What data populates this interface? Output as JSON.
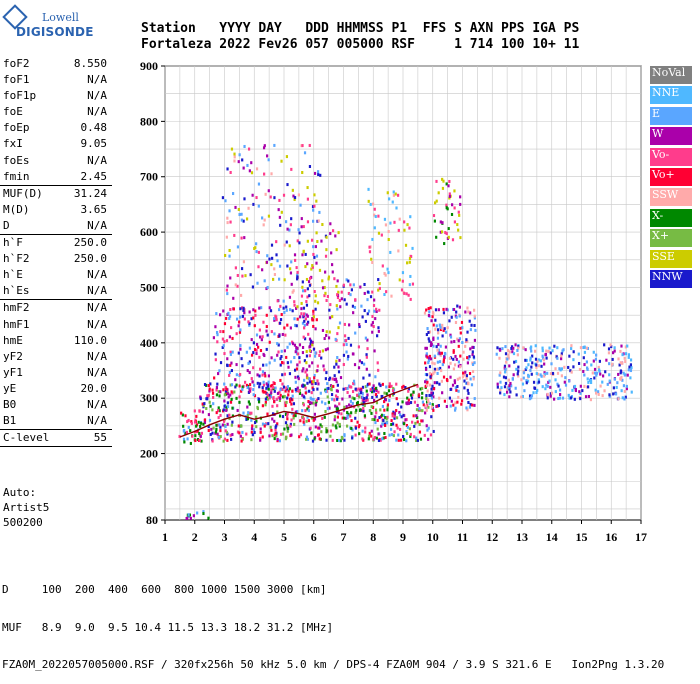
{
  "logo": {
    "line1": "Lowell",
    "line2": "DIGISONDE"
  },
  "header": {
    "line1": "Station   YYYY DAY   DDD HHMMSS P1  FFS S AXN PPS IGA PS",
    "line2": "Fortaleza 2022 Fev26 057 005000 RSF     1 714 100 10+ 11"
  },
  "params": [
    {
      "groups": [
        {
          "label": "foF2",
          "value": "8.550"
        },
        {
          "label": "foF1",
          "value": "N/A"
        },
        {
          "label": "foF1p",
          "value": "N/A"
        },
        {
          "label": "foE",
          "value": "N/A"
        },
        {
          "label": "foEp",
          "value": "0.48"
        },
        {
          "label": "fxI",
          "value": "9.05"
        },
        {
          "label": "foEs",
          "value": "N/A"
        },
        {
          "label": "fmin",
          "value": "2.45"
        }
      ]
    },
    {
      "groups": [
        {
          "label": "MUF(D)",
          "value": "31.24"
        },
        {
          "label": "M(D)",
          "value": "3.65"
        },
        {
          "label": "D",
          "value": "N/A"
        }
      ]
    },
    {
      "groups": [
        {
          "label": "h`F",
          "value": "250.0"
        },
        {
          "label": "h`F2",
          "value": "250.0"
        },
        {
          "label": "h`E",
          "value": "N/A"
        },
        {
          "label": "h`Es",
          "value": "N/A"
        }
      ]
    },
    {
      "groups": [
        {
          "label": "hmF2",
          "value": "N/A"
        },
        {
          "label": "hmF1",
          "value": "N/A"
        },
        {
          "label": "hmE",
          "value": "110.0"
        },
        {
          "label": "yF2",
          "value": "N/A"
        },
        {
          "label": "yF1",
          "value": "N/A"
        },
        {
          "label": "yE",
          "value": "20.0"
        },
        {
          "label": "B0",
          "value": "N/A"
        },
        {
          "label": "B1",
          "value": "N/A"
        }
      ]
    },
    {
      "groups": [
        {
          "label": "C-level",
          "value": "55"
        }
      ]
    }
  ],
  "auto": {
    "line1": "Auto:",
    "line2": "Artist5",
    "line3": "500200"
  },
  "footer": {
    "line1": "D     100  200  400  600  800 1000 1500 3000 [km]",
    "line2": "MUF   8.9  9.0  9.5 10.4 11.5 13.3 18.2 31.2 [MHz]",
    "line3": "FZA0M_2022057005000.RSF / 320fx256h 50 kHz 5.0 km / DPS-4 FZA0M 904 / 3.9 S 321.6 E   Ion2Png 1.3.20"
  },
  "legend": [
    {
      "label": "NoVal",
      "color": "#808080"
    },
    {
      "label": "NNE",
      "color": "#4fb8ff"
    },
    {
      "label": "E",
      "color": "#5aa6ff"
    },
    {
      "label": "W",
      "color": "#aa00aa"
    },
    {
      "label": "Vo-",
      "color": "#ff3c8c"
    },
    {
      "label": "Vo+",
      "color": "#ff0033"
    },
    {
      "label": "SSW",
      "color": "#ffaaaa"
    },
    {
      "label": "X-",
      "color": "#008800"
    },
    {
      "label": "X+",
      "color": "#77bb44"
    },
    {
      "label": "SSE",
      "color": "#cccc00"
    },
    {
      "label": "NNW",
      "color": "#1a1acc"
    }
  ],
  "chart_data": {
    "type": "scatter",
    "title": "",
    "xlabel": "",
    "ylabel": "",
    "xlim": [
      1,
      17
    ],
    "ylim": [
      80,
      900
    ],
    "x_ticks": [
      1,
      2,
      3,
      4,
      5,
      6,
      7,
      8,
      9,
      10,
      11,
      12,
      13,
      14,
      15,
      16,
      17
    ],
    "y_ticks": [
      80,
      200,
      300,
      400,
      500,
      600,
      700,
      800,
      900
    ],
    "grid": true,
    "ordinary_trace": {
      "name": "",
      "color": "#8b0000",
      "points": [
        [
          1.5,
          230
        ],
        [
          2.0,
          240
        ],
        [
          2.5,
          252
        ],
        [
          3.0,
          262
        ],
        [
          3.5,
          270
        ],
        [
          4.0,
          262
        ],
        [
          4.5,
          268
        ],
        [
          5.0,
          276
        ],
        [
          5.5,
          272
        ],
        [
          6.0,
          265
        ],
        [
          6.5,
          272
        ],
        [
          7.0,
          280
        ],
        [
          7.5,
          288
        ],
        [
          8.0,
          292
        ],
        [
          8.5,
          305
        ],
        [
          9.0,
          315
        ],
        [
          9.5,
          325
        ]
      ]
    },
    "clusters": [
      {
        "x": [
          1.45,
          2.1
        ],
        "y": [
          215,
          280
        ],
        "colors": [
          "#ff0033",
          "#ff3c8c",
          "#008800",
          "#5aa6ff"
        ],
        "density": 1.0
      },
      {
        "x": [
          2.1,
          10.0
        ],
        "y": [
          225,
          330
        ],
        "colors": [
          "#ff0033",
          "#ff3c8c",
          "#aa00aa",
          "#008800",
          "#5aa6ff",
          "#1a1acc",
          "#77bb44"
        ],
        "density": 1.0
      },
      {
        "x": [
          2.6,
          6.1
        ],
        "y": [
          300,
          470
        ],
        "colors": [
          "#aa00aa",
          "#ff3c8c",
          "#1a1acc",
          "#ff0033",
          "#5aa6ff"
        ],
        "density": 0.55
      },
      {
        "x": [
          2.9,
          6.2
        ],
        "y": [
          470,
          760
        ],
        "colors": [
          "#aa00aa",
          "#ff3c8c",
          "#ffaaaa",
          "#cccc00",
          "#1a1acc",
          "#5aa6ff"
        ],
        "density": 0.22
      },
      {
        "x": [
          5.4,
          6.8
        ],
        "y": [
          330,
          620
        ],
        "colors": [
          "#aa00aa",
          "#1a1acc",
          "#ff3c8c",
          "#cccc00"
        ],
        "density": 0.35
      },
      {
        "x": [
          6.7,
          8.2
        ],
        "y": [
          300,
          520
        ],
        "colors": [
          "#aa00aa",
          "#1a1acc",
          "#ff3c8c",
          "#5aa6ff"
        ],
        "density": 0.4
      },
      {
        "x": [
          7.8,
          9.3
        ],
        "y": [
          480,
          690
        ],
        "colors": [
          "#cccc00",
          "#ffaaaa",
          "#4fb8ff",
          "#ff3c8c"
        ],
        "density": 0.25
      },
      {
        "x": [
          9.7,
          11.4
        ],
        "y": [
          280,
          470
        ],
        "colors": [
          "#1a1acc",
          "#aa00aa",
          "#ff0033",
          "#ffaaaa",
          "#5aa6ff"
        ],
        "density": 0.9
      },
      {
        "x": [
          10.0,
          10.9
        ],
        "y": [
          580,
          700
        ],
        "colors": [
          "#cccc00",
          "#ff3c8c",
          "#aa00aa",
          "#008800"
        ],
        "density": 0.45
      },
      {
        "x": [
          12.1,
          16.7
        ],
        "y": [
          300,
          400
        ],
        "colors": [
          "#1a1acc",
          "#5aa6ff",
          "#aa00aa",
          "#ffaaaa",
          "#4fb8ff"
        ],
        "density": 0.85
      },
      {
        "x": [
          1.5,
          2.6
        ],
        "y": [
          85,
          98
        ],
        "colors": [
          "#008800",
          "#aa00aa",
          "#5aa6ff"
        ],
        "density": 1.0
      }
    ]
  }
}
